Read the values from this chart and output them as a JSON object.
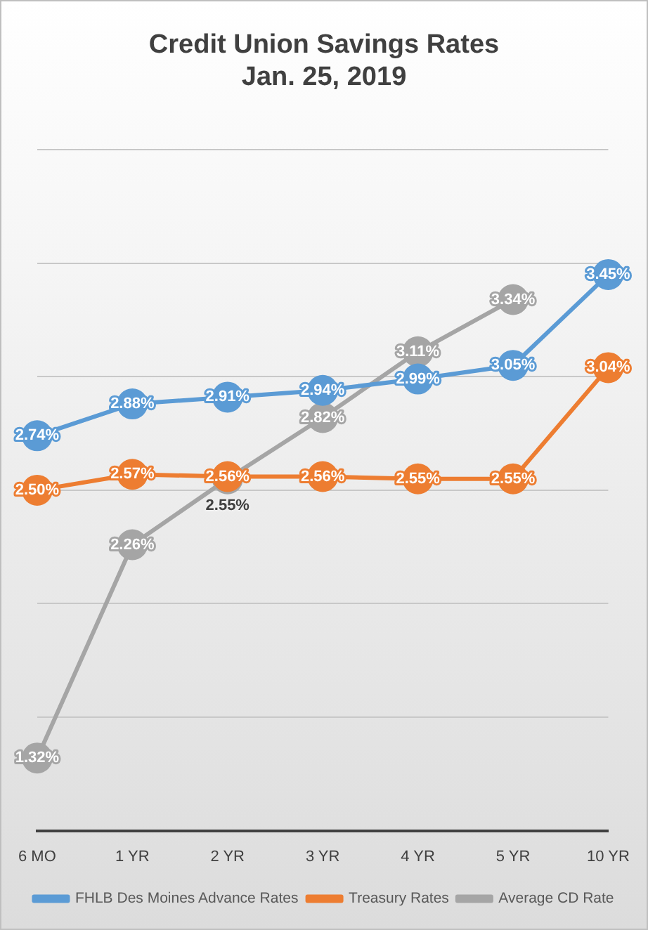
{
  "chart_data": {
    "type": "line",
    "title": [
      "Credit Union Savings Rates",
      "Jan. 25, 2019"
    ],
    "categories": [
      "6 MO",
      "1 YR",
      "2 YR",
      "3 YR",
      "4 YR",
      "5 YR",
      "10 YR"
    ],
    "series": [
      {
        "name": "FHLB Des Moines Advance Rates",
        "color": "#5b9bd5",
        "values": [
          2.74,
          2.88,
          2.91,
          2.94,
          2.99,
          3.05,
          3.45
        ],
        "value_labels": [
          "2.74%",
          "2.88%",
          "2.91%",
          "2.94%",
          "2.99%",
          "3.05%",
          "3.45%"
        ]
      },
      {
        "name": "Treasury Rates",
        "color": "#ed7d31",
        "values": [
          2.5,
          2.57,
          2.56,
          2.56,
          2.55,
          2.55,
          3.04
        ],
        "value_labels": [
          "2.50%",
          "2.57%",
          "2.56%",
          "2.56%",
          "2.55%",
          "2.55%",
          "3.04%"
        ]
      },
      {
        "name": "Average CD Rate",
        "color": "#a5a5a5",
        "values": [
          1.32,
          2.26,
          2.55,
          2.82,
          3.11,
          3.34,
          null
        ],
        "value_labels": [
          "1.32%",
          "2.26%",
          "2.55%",
          "2.82%",
          "3.11%",
          "3.34%",
          null
        ]
      }
    ],
    "ylim": [
      1,
      4
    ],
    "yticks": [
      {
        "value": 1,
        "label": null
      },
      {
        "value": 1.5,
        "label": null
      },
      {
        "value": 2,
        "label": null
      },
      {
        "value": 2.5,
        "label": null
      },
      {
        "value": 3,
        "label": null
      },
      {
        "value": 3.5,
        "label": null
      },
      {
        "value": 4,
        "label": null
      }
    ],
    "tick_labels": "x",
    "grid": "y",
    "legend": "bottom",
    "marker": "circle",
    "line_style": "solid"
  }
}
